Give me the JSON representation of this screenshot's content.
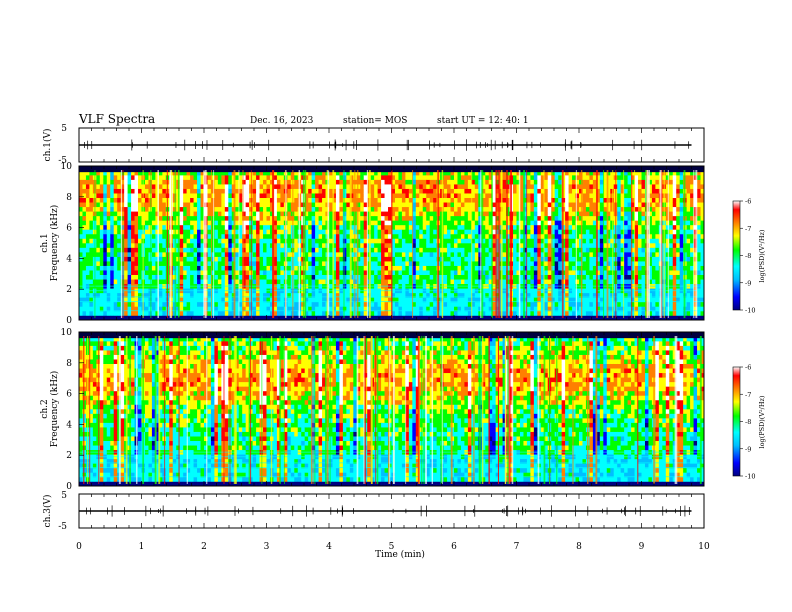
{
  "header": {
    "title": "VLF Spectra",
    "date": "Dec. 16, 2023",
    "station": "station= MOS",
    "start_ut": "start  UT =   12: 40: 1"
  },
  "chart_data": [
    {
      "type": "line",
      "id": "ch1-waveform",
      "ylabel": "ch.1(V)",
      "ylim": [
        -5,
        5
      ],
      "y_ticks": [
        "5",
        "-5"
      ],
      "series": [
        {
          "x": [
            0,
            9.8
          ],
          "values": [
            0,
            0
          ],
          "color": "#000000"
        }
      ]
    },
    {
      "type": "heatmap",
      "id": "ch1-spectrogram",
      "ylabel_line1": "ch.1",
      "ylabel_line2": "Frequency (kHz)",
      "ylim": [
        0,
        10
      ],
      "y_ticks": [
        "0",
        "2",
        "4",
        "6",
        "8",
        "10"
      ],
      "colorbar": {
        "label": "log(PSD)(V²/Hz)",
        "range": [
          -10,
          -6
        ],
        "ticks": [
          "-6",
          "-7",
          "-8",
          "-9",
          "-10"
        ],
        "colors": [
          "#000080",
          "#0000ff",
          "#00bfff",
          "#00ffff",
          "#00ff00",
          "#ffff00",
          "#ff8000",
          "#ff0000",
          "#ffffff"
        ]
      }
    },
    {
      "type": "heatmap",
      "id": "ch2-spectrogram",
      "ylabel_line1": "ch.2",
      "ylabel_line2": "Frequency (kHz)",
      "ylim": [
        0,
        10
      ],
      "y_ticks": [
        "0",
        "2",
        "4",
        "6",
        "8",
        "10"
      ],
      "colorbar": {
        "label": "log(PSD)(V²/Hz)",
        "range": [
          -10,
          -6
        ],
        "ticks": [
          "-6",
          "-7",
          "-8",
          "-9",
          "-10"
        ],
        "colors": [
          "#000080",
          "#0000ff",
          "#00bfff",
          "#00ffff",
          "#00ff00",
          "#ffff00",
          "#ff8000",
          "#ff0000",
          "#ffffff"
        ]
      }
    },
    {
      "type": "line",
      "id": "ch3-waveform",
      "ylabel": "ch.3(V)",
      "ylim": [
        -5,
        5
      ],
      "y_ticks": [
        "5",
        "-5"
      ],
      "series": [
        {
          "x": [
            0,
            9.8
          ],
          "values": [
            0,
            0
          ],
          "color": "#000000"
        }
      ]
    }
  ],
  "x_axis": {
    "label": "Time  (min)",
    "range": [
      0,
      10
    ],
    "tick_labels": [
      "0",
      "1",
      "2",
      "3",
      "4",
      "5",
      "6",
      "7",
      "8",
      "9",
      "10"
    ]
  }
}
